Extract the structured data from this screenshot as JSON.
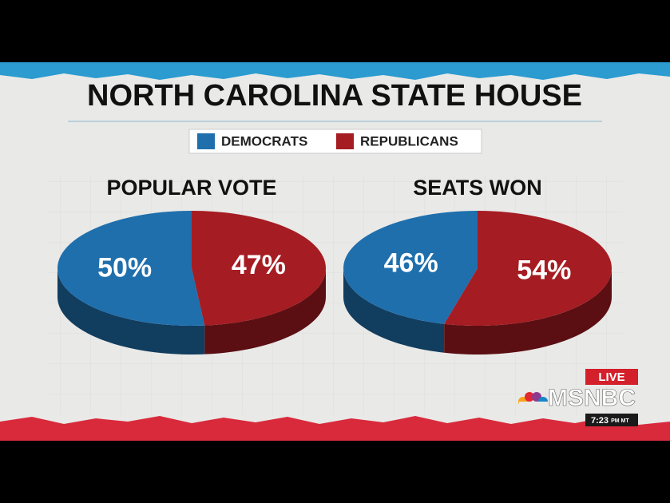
{
  "title": "NORTH CAROLINA STATE HOUSE",
  "legend": [
    {
      "name": "DEMOCRATS",
      "color": "#1f6fad"
    },
    {
      "name": "REPUBLICANS",
      "color": "#a51c22"
    }
  ],
  "chart_data": [
    {
      "type": "pie",
      "title": "POPULAR VOTE",
      "values": [
        50,
        47
      ],
      "value_labels": [
        "50%",
        "47%"
      ]
    },
    {
      "type": "pie",
      "title": "SEATS WON",
      "values": [
        46,
        54
      ],
      "value_labels": [
        "46%",
        "54%"
      ]
    }
  ],
  "overlay": {
    "live": "LIVE",
    "network": "MSNBC",
    "time": "7:23",
    "time_suffix": "PM MT"
  }
}
